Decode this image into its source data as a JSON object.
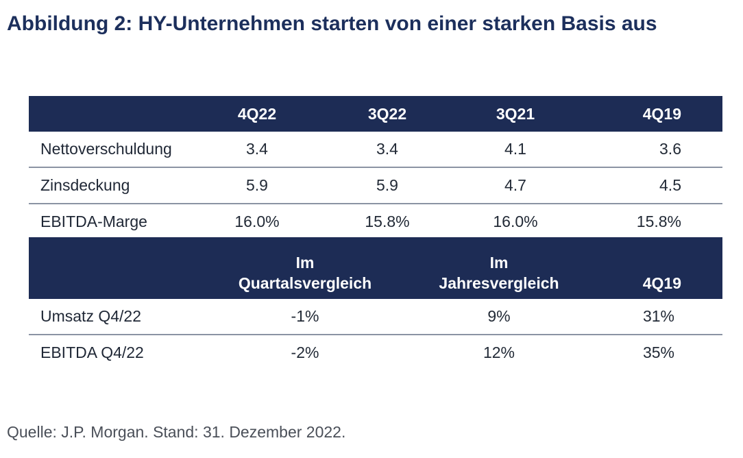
{
  "title": "Abbildung 2: HY-Unternehmen starten von einer starken Basis aus",
  "table1": {
    "columns": [
      "",
      "4Q22",
      "3Q22",
      "3Q21",
      "4Q19"
    ],
    "rows": [
      {
        "label": "Nettoverschuldung",
        "values": [
          "3.4",
          "3.4",
          "4.1",
          "3.6"
        ]
      },
      {
        "label": "Zinsdeckung",
        "values": [
          "5.9",
          "5.9",
          "4.7",
          "4.5"
        ]
      },
      {
        "label": "EBITDA-Marge",
        "values": [
          "16.0%",
          "15.8%",
          "16.0%",
          "15.8%"
        ]
      }
    ]
  },
  "table2": {
    "columns": [
      {
        "line1": "",
        "line2": ""
      },
      {
        "line1": "Im",
        "line2": "Quartalsvergleich"
      },
      {
        "line1": "Im",
        "line2": "Jahresvergleich"
      },
      {
        "line1": "",
        "line2": "4Q19"
      }
    ],
    "rows": [
      {
        "label": "Umsatz Q4/22",
        "values": [
          "-1%",
          "9%",
          "31%"
        ]
      },
      {
        "label": "EBITDA Q4/22",
        "values": [
          "-2%",
          "12%",
          "35%"
        ]
      }
    ]
  },
  "source": "Quelle: J.P. Morgan. Stand: 31. Dezember 2022."
}
